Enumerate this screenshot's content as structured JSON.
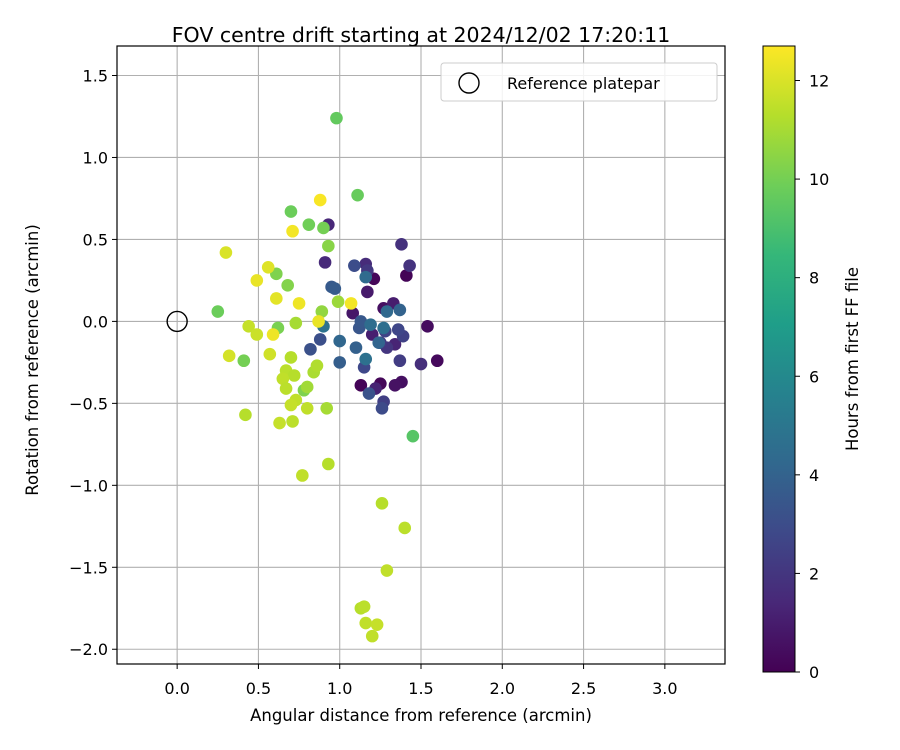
{
  "chart_data": {
    "type": "scatter",
    "title": "FOV centre drift starting at 2024/12/02 17:20:11",
    "xlabel": "Angular distance from reference (arcmin)",
    "ylabel": "Rotation from reference (arcmin)",
    "xlim": [
      -0.37,
      3.37
    ],
    "ylim": [
      -2.09,
      1.68
    ],
    "xticks": [
      0.0,
      0.5,
      1.0,
      1.5,
      2.0,
      2.5,
      3.0
    ],
    "yticks": [
      -2.0,
      -1.5,
      -1.0,
      -0.5,
      0.0,
      0.5,
      1.0,
      1.5
    ],
    "x_tick_labels": [
      "0.0",
      "0.5",
      "1.0",
      "1.5",
      "2.0",
      "2.5",
      "3.0"
    ],
    "y_tick_labels": [
      "−2.0",
      "−1.5",
      "−1.0",
      "−0.5",
      "0.0",
      "0.5",
      "1.0",
      "1.5"
    ],
    "grid": true,
    "legend": {
      "position": "top-right",
      "entries": [
        "Reference platepar"
      ]
    },
    "reference_point": {
      "x": 0.0,
      "y": 0.0
    },
    "colorbar": {
      "label": "Hours from first FF file",
      "range": [
        0,
        12.7
      ],
      "ticks": [
        0,
        2,
        4,
        6,
        8,
        10,
        12
      ],
      "tick_labels": [
        "0",
        "2",
        "4",
        "6",
        "8",
        "10",
        "12"
      ],
      "colormap": "viridis"
    },
    "colormap_stops": [
      "#440154",
      "#482878",
      "#3e4989",
      "#31688e",
      "#26828e",
      "#1f9e89",
      "#35b779",
      "#6ece58",
      "#b5de2b",
      "#fde725"
    ],
    "points": [
      {
        "x": 1.21,
        "y": 0.26,
        "h": 0.2
      },
      {
        "x": 1.41,
        "y": 0.28,
        "h": 0.1
      },
      {
        "x": 1.27,
        "y": 0.08,
        "h": 0.5
      },
      {
        "x": 1.54,
        "y": -0.03,
        "h": 0.4
      },
      {
        "x": 1.6,
        "y": -0.24,
        "h": 0.3
      },
      {
        "x": 1.25,
        "y": -0.38,
        "h": 0.2
      },
      {
        "x": 1.13,
        "y": -0.39,
        "h": 0.1
      },
      {
        "x": 1.38,
        "y": -0.37,
        "h": 0.5
      },
      {
        "x": 1.34,
        "y": -0.39,
        "h": 0.6
      },
      {
        "x": 1.08,
        "y": 0.05,
        "h": 0.8
      },
      {
        "x": 1.17,
        "y": 0.18,
        "h": 0.9
      },
      {
        "x": 1.33,
        "y": 0.11,
        "h": 1.0
      },
      {
        "x": 1.2,
        "y": -0.08,
        "h": 1.1
      },
      {
        "x": 1.22,
        "y": -0.41,
        "h": 1.2
      },
      {
        "x": 1.34,
        "y": -0.14,
        "h": 1.3
      },
      {
        "x": 0.93,
        "y": 0.59,
        "h": 1.4
      },
      {
        "x": 0.91,
        "y": 0.36,
        "h": 1.5
      },
      {
        "x": 1.16,
        "y": 0.35,
        "h": 1.6
      },
      {
        "x": 1.5,
        "y": -0.26,
        "h": 1.7
      },
      {
        "x": 1.38,
        "y": 0.47,
        "h": 1.8
      },
      {
        "x": 1.43,
        "y": 0.34,
        "h": 1.9
      },
      {
        "x": 1.29,
        "y": -0.16,
        "h": 2.0
      },
      {
        "x": 1.17,
        "y": 0.31,
        "h": 2.1
      },
      {
        "x": 1.25,
        "y": -0.13,
        "h": 2.2
      },
      {
        "x": 1.37,
        "y": -0.24,
        "h": 2.3
      },
      {
        "x": 1.27,
        "y": -0.49,
        "h": 2.4
      },
      {
        "x": 1.39,
        "y": -0.09,
        "h": 2.5
      },
      {
        "x": 1.28,
        "y": -0.06,
        "h": 2.6
      },
      {
        "x": 1.36,
        "y": -0.05,
        "h": 2.7
      },
      {
        "x": 1.15,
        "y": -0.28,
        "h": 2.8
      },
      {
        "x": 1.26,
        "y": -0.53,
        "h": 2.9
      },
      {
        "x": 1.09,
        "y": 0.34,
        "h": 3.0
      },
      {
        "x": 0.88,
        "y": -0.11,
        "h": 3.1
      },
      {
        "x": 0.82,
        "y": -0.17,
        "h": 3.2
      },
      {
        "x": 1.18,
        "y": -0.44,
        "h": 3.3
      },
      {
        "x": 1.12,
        "y": -0.04,
        "h": 3.4
      },
      {
        "x": 1.13,
        "y": 0.0,
        "h": 3.5
      },
      {
        "x": 0.95,
        "y": 0.21,
        "h": 3.6
      },
      {
        "x": 0.97,
        "y": 0.2,
        "h": 3.7
      },
      {
        "x": 1.0,
        "y": -0.25,
        "h": 3.8
      },
      {
        "x": 1.1,
        "y": -0.16,
        "h": 3.9
      },
      {
        "x": 1.37,
        "y": 0.07,
        "h": 4.0
      },
      {
        "x": 1.24,
        "y": -0.13,
        "h": 4.1
      },
      {
        "x": 1.0,
        "y": -0.12,
        "h": 4.2
      },
      {
        "x": 1.29,
        "y": 0.06,
        "h": 4.3
      },
      {
        "x": 1.16,
        "y": 0.27,
        "h": 4.4
      },
      {
        "x": 1.19,
        "y": -0.02,
        "h": 4.5
      },
      {
        "x": 1.27,
        "y": -0.04,
        "h": 4.6
      },
      {
        "x": 1.16,
        "y": -0.23,
        "h": 4.7
      },
      {
        "x": 0.9,
        "y": -0.03,
        "h": 4.8
      },
      {
        "x": 1.45,
        "y": -0.7,
        "h": 9.3
      },
      {
        "x": 0.98,
        "y": 1.24,
        "h": 9.6
      },
      {
        "x": 1.11,
        "y": 0.77,
        "h": 9.7
      },
      {
        "x": 0.7,
        "y": 0.67,
        "h": 9.8
      },
      {
        "x": 0.81,
        "y": 0.59,
        "h": 9.9
      },
      {
        "x": 0.9,
        "y": 0.57,
        "h": 10.0
      },
      {
        "x": 0.25,
        "y": 0.06,
        "h": 9.8
      },
      {
        "x": 0.41,
        "y": -0.24,
        "h": 10.0
      },
      {
        "x": 0.61,
        "y": 0.29,
        "h": 10.2
      },
      {
        "x": 0.68,
        "y": 0.22,
        "h": 10.3
      },
      {
        "x": 0.62,
        "y": -0.04,
        "h": 10.1
      },
      {
        "x": 0.78,
        "y": -0.42,
        "h": 10.2
      },
      {
        "x": 0.93,
        "y": 0.46,
        "h": 10.4
      },
      {
        "x": 0.89,
        "y": 0.06,
        "h": 10.6
      },
      {
        "x": 0.99,
        "y": 0.12,
        "h": 10.8
      },
      {
        "x": 0.73,
        "y": -0.01,
        "h": 11.0
      },
      {
        "x": 0.8,
        "y": -0.4,
        "h": 10.9
      },
      {
        "x": 0.92,
        "y": -0.53,
        "h": 11.0
      },
      {
        "x": 0.84,
        "y": -0.31,
        "h": 11.1
      },
      {
        "x": 0.86,
        "y": -0.27,
        "h": 11.2
      },
      {
        "x": 0.7,
        "y": -0.22,
        "h": 11.3
      },
      {
        "x": 0.67,
        "y": -0.3,
        "h": 11.4
      },
      {
        "x": 0.72,
        "y": -0.33,
        "h": 11.3
      },
      {
        "x": 0.65,
        "y": -0.35,
        "h": 11.5
      },
      {
        "x": 0.67,
        "y": -0.41,
        "h": 11.4
      },
      {
        "x": 0.73,
        "y": -0.48,
        "h": 11.5
      },
      {
        "x": 0.7,
        "y": -0.51,
        "h": 11.6
      },
      {
        "x": 0.8,
        "y": -0.53,
        "h": 11.5
      },
      {
        "x": 0.63,
        "y": -0.62,
        "h": 11.6
      },
      {
        "x": 0.71,
        "y": -0.61,
        "h": 11.4
      },
      {
        "x": 0.42,
        "y": -0.57,
        "h": 11.3
      },
      {
        "x": 0.44,
        "y": -0.03,
        "h": 11.6
      },
      {
        "x": 0.49,
        "y": -0.08,
        "h": 11.7
      },
      {
        "x": 0.57,
        "y": -0.2,
        "h": 11.8
      },
      {
        "x": 0.32,
        "y": -0.21,
        "h": 11.9
      },
      {
        "x": 0.93,
        "y": -0.87,
        "h": 11.3
      },
      {
        "x": 0.77,
        "y": -0.94,
        "h": 11.5
      },
      {
        "x": 1.26,
        "y": -1.11,
        "h": 11.3
      },
      {
        "x": 1.4,
        "y": -1.26,
        "h": 11.4
      },
      {
        "x": 1.29,
        "y": -1.52,
        "h": 11.5
      },
      {
        "x": 1.13,
        "y": -1.75,
        "h": 11.3
      },
      {
        "x": 1.15,
        "y": -1.74,
        "h": 11.4
      },
      {
        "x": 1.16,
        "y": -1.84,
        "h": 11.5
      },
      {
        "x": 1.23,
        "y": -1.85,
        "h": 11.6
      },
      {
        "x": 1.2,
        "y": -1.92,
        "h": 11.5
      },
      {
        "x": 0.3,
        "y": 0.42,
        "h": 12.0
      },
      {
        "x": 0.56,
        "y": 0.33,
        "h": 12.1
      },
      {
        "x": 0.49,
        "y": 0.25,
        "h": 12.3
      },
      {
        "x": 0.61,
        "y": 0.14,
        "h": 12.2
      },
      {
        "x": 0.75,
        "y": 0.11,
        "h": 12.4
      },
      {
        "x": 0.71,
        "y": 0.55,
        "h": 12.5
      },
      {
        "x": 0.88,
        "y": 0.74,
        "h": 12.6
      },
      {
        "x": 0.59,
        "y": -0.08,
        "h": 12.4
      },
      {
        "x": 0.87,
        "y": 0.0,
        "h": 12.3
      },
      {
        "x": 1.07,
        "y": 0.11,
        "h": 12.5
      }
    ]
  }
}
